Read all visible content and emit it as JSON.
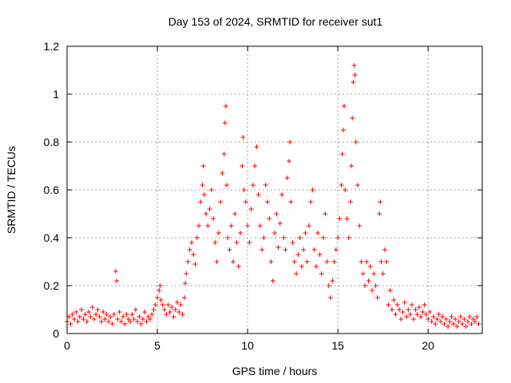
{
  "chart_data": {
    "type": "scatter",
    "title": "Day 153 of 2024, SRMTID for receiver sut1",
    "xlabel": "GPS time / hours",
    "ylabel": "SRMTID / TECUs",
    "xlim": [
      0,
      23
    ],
    "ylim": [
      0,
      1.2
    ],
    "xticks": [
      0,
      5,
      10,
      15,
      20
    ],
    "yticks": [
      0,
      0.2,
      0.4,
      0.6,
      0.8,
      1,
      1.2
    ],
    "xtick_labels": [
      "0",
      "5",
      "10",
      "15",
      "20"
    ],
    "ytick_labels": [
      "0",
      "0.2",
      "0.4",
      "0.6",
      "0.8",
      "1",
      "1.2"
    ],
    "grid": true,
    "marker": "+",
    "color": "#ff0000",
    "series": [
      {
        "name": "sut1",
        "points": [
          [
            0.0,
            0.05
          ],
          [
            0.1,
            0.07
          ],
          [
            0.2,
            0.04
          ],
          [
            0.3,
            0.08
          ],
          [
            0.4,
            0.06
          ],
          [
            0.5,
            0.09
          ],
          [
            0.6,
            0.05
          ],
          [
            0.7,
            0.07
          ],
          [
            0.8,
            0.1
          ],
          [
            0.9,
            0.06
          ],
          [
            1.0,
            0.08
          ],
          [
            1.1,
            0.05
          ],
          [
            1.2,
            0.09
          ],
          [
            1.3,
            0.07
          ],
          [
            1.4,
            0.11
          ],
          [
            1.5,
            0.06
          ],
          [
            1.6,
            0.08
          ],
          [
            1.7,
            0.1
          ],
          [
            1.8,
            0.07
          ],
          [
            1.9,
            0.05
          ],
          [
            2.0,
            0.09
          ],
          [
            2.1,
            0.06
          ],
          [
            2.2,
            0.08
          ],
          [
            2.3,
            0.05
          ],
          [
            2.4,
            0.07
          ],
          [
            2.5,
            0.04
          ],
          [
            2.6,
            0.08
          ],
          [
            2.7,
            0.26
          ],
          [
            2.75,
            0.22
          ],
          [
            2.8,
            0.06
          ],
          [
            2.9,
            0.09
          ],
          [
            3.0,
            0.05
          ],
          [
            3.1,
            0.07
          ],
          [
            3.2,
            0.04
          ],
          [
            3.3,
            0.08
          ],
          [
            3.4,
            0.06
          ],
          [
            3.5,
            0.05
          ],
          [
            3.6,
            0.08
          ],
          [
            3.7,
            0.06
          ],
          [
            3.8,
            0.1
          ],
          [
            3.9,
            0.05
          ],
          [
            4.0,
            0.07
          ],
          [
            4.1,
            0.04
          ],
          [
            4.2,
            0.06
          ],
          [
            4.3,
            0.09
          ],
          [
            4.4,
            0.05
          ],
          [
            4.5,
            0.07
          ],
          [
            4.6,
            0.06
          ],
          [
            4.7,
            0.08
          ],
          [
            4.8,
            0.1
          ],
          [
            4.9,
            0.12
          ],
          [
            5.0,
            0.15
          ],
          [
            5.1,
            0.18
          ],
          [
            5.15,
            0.2
          ],
          [
            5.2,
            0.14
          ],
          [
            5.3,
            0.12
          ],
          [
            5.4,
            0.1
          ],
          [
            5.5,
            0.08
          ],
          [
            5.6,
            0.12
          ],
          [
            5.7,
            0.09
          ],
          [
            5.8,
            0.11
          ],
          [
            5.9,
            0.07
          ],
          [
            6.0,
            0.1
          ],
          [
            6.1,
            0.13
          ],
          [
            6.2,
            0.09
          ],
          [
            6.3,
            0.12
          ],
          [
            6.4,
            0.08
          ],
          [
            6.5,
            0.15
          ],
          [
            6.55,
            0.21
          ],
          [
            6.6,
            0.25
          ],
          [
            6.7,
            0.3
          ],
          [
            6.8,
            0.35
          ],
          [
            6.9,
            0.38
          ],
          [
            7.0,
            0.33
          ],
          [
            7.1,
            0.29
          ],
          [
            7.2,
            0.4
          ],
          [
            7.3,
            0.45
          ],
          [
            7.4,
            0.55
          ],
          [
            7.5,
            0.62
          ],
          [
            7.55,
            0.7
          ],
          [
            7.6,
            0.58
          ],
          [
            7.7,
            0.5
          ],
          [
            7.8,
            0.45
          ],
          [
            7.9,
            0.52
          ],
          [
            8.0,
            0.6
          ],
          [
            8.1,
            0.48
          ],
          [
            8.2,
            0.38
          ],
          [
            8.3,
            0.3
          ],
          [
            8.4,
            0.42
          ],
          [
            8.5,
            0.55
          ],
          [
            8.6,
            0.67
          ],
          [
            8.7,
            0.75
          ],
          [
            8.75,
            0.88
          ],
          [
            8.8,
            0.95
          ],
          [
            8.85,
            0.62
          ],
          [
            8.9,
            0.4
          ],
          [
            9.0,
            0.35
          ],
          [
            9.1,
            0.45
          ],
          [
            9.2,
            0.3
          ],
          [
            9.3,
            0.5
          ],
          [
            9.4,
            0.38
          ],
          [
            9.5,
            0.28
          ],
          [
            9.6,
            0.42
          ],
          [
            9.7,
            0.7
          ],
          [
            9.75,
            0.82
          ],
          [
            9.8,
            0.6
          ],
          [
            9.9,
            0.55
          ],
          [
            10.0,
            0.45
          ],
          [
            10.1,
            0.38
          ],
          [
            10.2,
            0.52
          ],
          [
            10.3,
            0.62
          ],
          [
            10.4,
            0.7
          ],
          [
            10.5,
            0.78
          ],
          [
            10.6,
            0.58
          ],
          [
            10.7,
            0.45
          ],
          [
            10.8,
            0.35
          ],
          [
            10.9,
            0.4
          ],
          [
            11.0,
            0.62
          ],
          [
            11.1,
            0.55
          ],
          [
            11.2,
            0.48
          ],
          [
            11.3,
            0.3
          ],
          [
            11.4,
            0.22
          ],
          [
            11.5,
            0.42
          ],
          [
            11.6,
            0.5
          ],
          [
            11.7,
            0.36
          ],
          [
            11.8,
            0.46
          ],
          [
            11.9,
            0.58
          ],
          [
            12.0,
            0.4
          ],
          [
            12.1,
            0.35
          ],
          [
            12.2,
            0.65
          ],
          [
            12.3,
            0.72
          ],
          [
            12.35,
            0.8
          ],
          [
            12.4,
            0.55
          ],
          [
            12.5,
            0.38
          ],
          [
            12.6,
            0.3
          ],
          [
            12.7,
            0.25
          ],
          [
            12.8,
            0.33
          ],
          [
            12.9,
            0.4
          ],
          [
            13.0,
            0.28
          ],
          [
            13.1,
            0.35
          ],
          [
            13.2,
            0.42
          ],
          [
            13.3,
            0.3
          ],
          [
            13.4,
            0.45
          ],
          [
            13.5,
            0.55
          ],
          [
            13.6,
            0.6
          ],
          [
            13.7,
            0.35
          ],
          [
            13.8,
            0.28
          ],
          [
            13.9,
            0.42
          ],
          [
            14.0,
            0.33
          ],
          [
            14.1,
            0.25
          ],
          [
            14.2,
            0.4
          ],
          [
            14.3,
            0.5
          ],
          [
            14.4,
            0.3
          ],
          [
            14.5,
            0.2
          ],
          [
            14.6,
            0.15
          ],
          [
            14.7,
            0.22
          ],
          [
            14.8,
            0.3
          ],
          [
            14.9,
            0.35
          ],
          [
            15.0,
            0.4
          ],
          [
            15.1,
            0.48
          ],
          [
            15.2,
            0.62
          ],
          [
            15.25,
            0.75
          ],
          [
            15.3,
            0.85
          ],
          [
            15.35,
            0.95
          ],
          [
            15.4,
            0.6
          ],
          [
            15.5,
            0.48
          ],
          [
            15.6,
            0.4
          ],
          [
            15.7,
            0.55
          ],
          [
            15.75,
            0.7
          ],
          [
            15.8,
            0.9
          ],
          [
            15.85,
            1.05
          ],
          [
            15.9,
            1.12
          ],
          [
            15.95,
            1.08
          ],
          [
            16.0,
            0.8
          ],
          [
            16.1,
            0.62
          ],
          [
            16.2,
            0.45
          ],
          [
            16.3,
            0.3
          ],
          [
            16.4,
            0.25
          ],
          [
            16.5,
            0.2
          ],
          [
            16.6,
            0.3
          ],
          [
            16.7,
            0.22
          ],
          [
            16.8,
            0.28
          ],
          [
            16.9,
            0.18
          ],
          [
            17.0,
            0.25
          ],
          [
            17.1,
            0.2
          ],
          [
            17.2,
            0.15
          ],
          [
            17.3,
            0.5
          ],
          [
            17.35,
            0.55
          ],
          [
            17.4,
            0.3
          ],
          [
            17.5,
            0.25
          ],
          [
            17.6,
            0.35
          ],
          [
            17.7,
            0.3
          ],
          [
            17.8,
            0.12
          ],
          [
            17.9,
            0.18
          ],
          [
            18.0,
            0.1
          ],
          [
            18.1,
            0.14
          ],
          [
            18.2,
            0.08
          ],
          [
            18.3,
            0.12
          ],
          [
            18.4,
            0.1
          ],
          [
            18.5,
            0.06
          ],
          [
            18.6,
            0.09
          ],
          [
            18.7,
            0.13
          ],
          [
            18.8,
            0.07
          ],
          [
            18.9,
            0.1
          ],
          [
            19.0,
            0.08
          ],
          [
            19.1,
            0.12
          ],
          [
            19.2,
            0.06
          ],
          [
            19.3,
            0.1
          ],
          [
            19.4,
            0.08
          ],
          [
            19.5,
            0.11
          ],
          [
            19.6,
            0.07
          ],
          [
            19.7,
            0.09
          ],
          [
            19.8,
            0.12
          ],
          [
            19.9,
            0.08
          ],
          [
            20.0,
            0.06
          ],
          [
            20.1,
            0.09
          ],
          [
            20.2,
            0.05
          ],
          [
            20.3,
            0.07
          ],
          [
            20.4,
            0.04
          ],
          [
            20.5,
            0.06
          ],
          [
            20.6,
            0.08
          ],
          [
            20.7,
            0.05
          ],
          [
            20.8,
            0.07
          ],
          [
            20.9,
            0.04
          ],
          [
            21.0,
            0.06
          ],
          [
            21.1,
            0.03
          ],
          [
            21.2,
            0.05
          ],
          [
            21.3,
            0.07
          ],
          [
            21.4,
            0.04
          ],
          [
            21.5,
            0.06
          ],
          [
            21.6,
            0.03
          ],
          [
            21.7,
            0.05
          ],
          [
            21.8,
            0.07
          ],
          [
            21.9,
            0.04
          ],
          [
            22.0,
            0.06
          ],
          [
            22.1,
            0.03
          ],
          [
            22.2,
            0.05
          ],
          [
            22.3,
            0.07
          ],
          [
            22.4,
            0.04
          ],
          [
            22.5,
            0.06
          ],
          [
            22.6,
            0.05
          ],
          [
            22.7,
            0.07
          ],
          [
            22.8,
            0.04
          ]
        ]
      }
    ]
  }
}
